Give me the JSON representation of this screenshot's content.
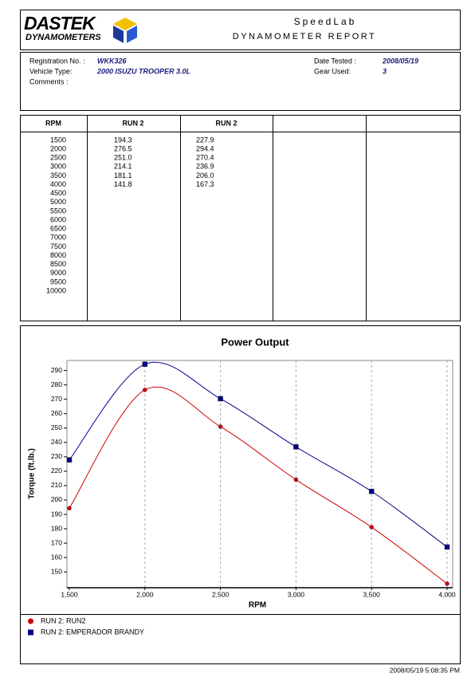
{
  "header": {
    "logo": "DASTEK",
    "logo_sub": "DYNAMOMETERS",
    "title": "SpeedLab",
    "subtitle": "DYNAMOMETER REPORT"
  },
  "info": {
    "left": [
      {
        "label": "Registration No. :",
        "value": "WKK326"
      },
      {
        "label": "Vehicle Type:",
        "value": "2000 ISUZU TROOPER 3.0L"
      },
      {
        "label": "Comments :"
      }
    ],
    "right": [
      {
        "label": "Date Tested :",
        "value": "2008/05/19"
      },
      {
        "label": "Gear Used:",
        "value": "3"
      }
    ]
  },
  "table": {
    "headers": [
      "RPM",
      "RUN 2",
      "RUN 2"
    ],
    "rpm": [
      1500,
      2000,
      2500,
      3000,
      3500,
      4000,
      4500,
      5000,
      5500,
      6000,
      6500,
      7000,
      7500,
      8000,
      8500,
      9000,
      9500,
      10000
    ],
    "columns": [
      [
        "194.3",
        "276.5",
        "251.0",
        "214.1",
        "181.1",
        "141.8"
      ],
      [
        "227.9",
        "294.4",
        "270.4",
        "236.9",
        "206.0",
        "167.3"
      ]
    ]
  },
  "chart_data": {
    "type": "line",
    "title": "Power Output",
    "x_label": "RPM",
    "y_label": "Torque (ft.lb.)",
    "x": [
      1500,
      2000,
      2500,
      3000,
      3500,
      4000
    ],
    "series": [
      {
        "name": "RUN 2: RUN2",
        "color": "#d00000",
        "marker": "circle",
        "values": [
          194.3,
          276.5,
          251.0,
          214.1,
          181.1,
          141.8
        ]
      },
      {
        "name": "RUN 2: EMPERADOR BRANDY",
        "color": "#00008b",
        "marker": "square",
        "values": [
          227.9,
          294.4,
          270.4,
          236.9,
          206.0,
          167.3
        ]
      }
    ],
    "xlim": [
      1500,
      4000
    ],
    "xticks": [
      {
        "value": 1500,
        "label": "1,500"
      },
      {
        "value": 2000,
        "label": "2,000"
      },
      {
        "value": 2500,
        "label": "2,500"
      },
      {
        "value": 3000,
        "label": "3,000"
      },
      {
        "value": 3500,
        "label": "3,500"
      },
      {
        "value": 4000,
        "label": "4,000"
      }
    ],
    "ylim": [
      139,
      297
    ],
    "yticks": [
      150,
      160,
      170,
      180,
      190,
      200,
      210,
      220,
      230,
      240,
      250,
      260,
      270,
      280,
      290
    ],
    "grid": true,
    "smooth": true
  },
  "footer": "2008/05/19 5:08:35 PM"
}
